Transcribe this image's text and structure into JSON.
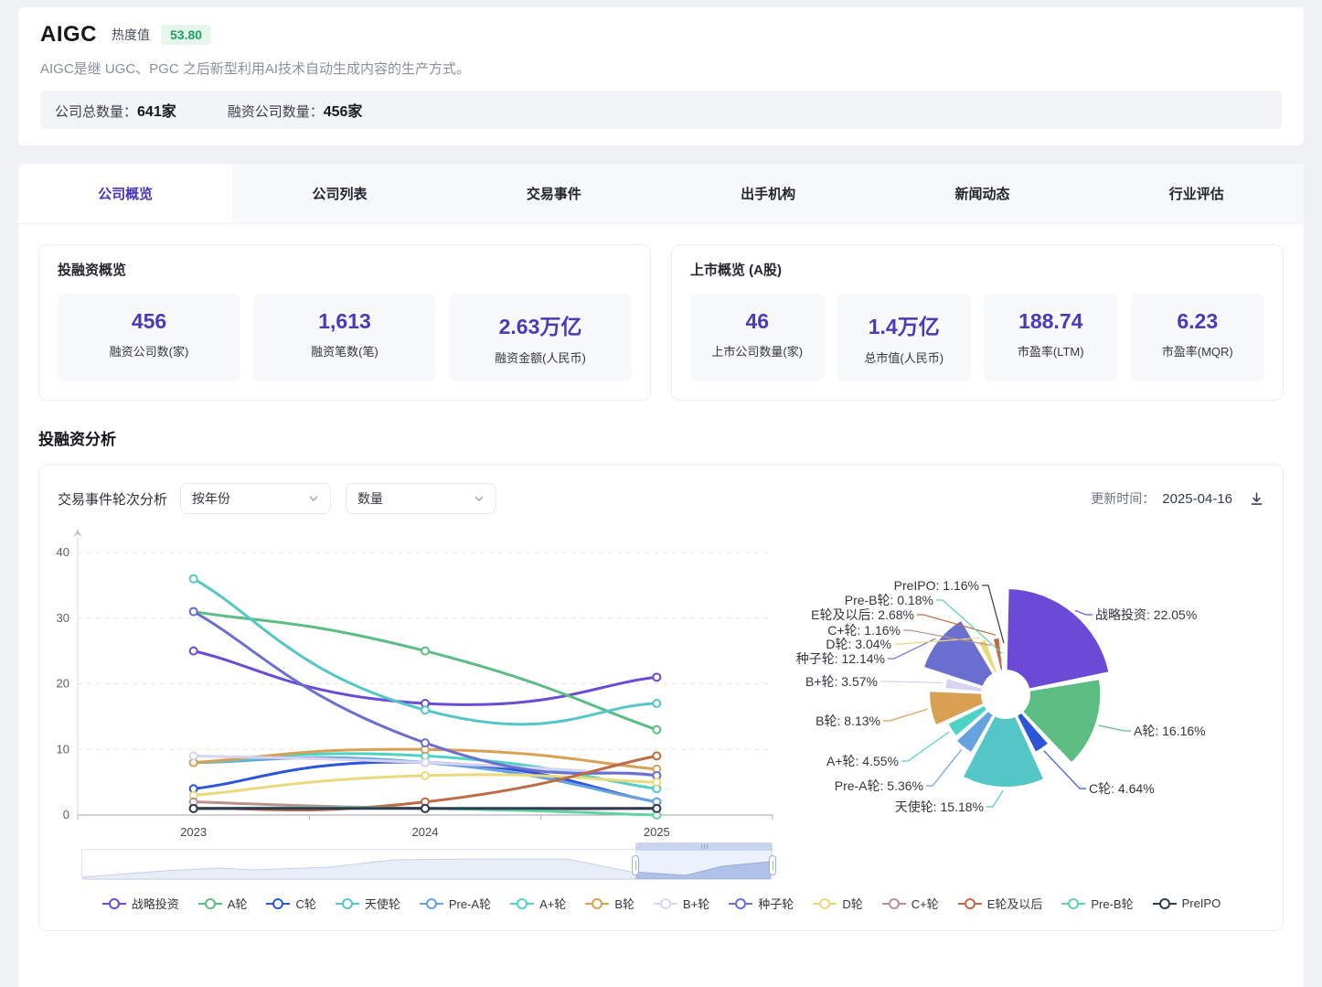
{
  "header": {
    "title": "AIGC",
    "heat_label": "热度值",
    "heat_value": "53.80",
    "description": "AIGC是继 UGC、PGC 之后新型利用AI技术自动生成内容的生产方式。",
    "stats": [
      {
        "label": "公司总数量：",
        "value": "641家"
      },
      {
        "label": "融资公司数量：",
        "value": "456家"
      }
    ]
  },
  "tabs": {
    "active_index": 0,
    "items": [
      {
        "label": "公司概览"
      },
      {
        "label": "公司列表"
      },
      {
        "label": "交易事件"
      },
      {
        "label": "出手机构"
      },
      {
        "label": "新闻动态"
      },
      {
        "label": "行业评估"
      }
    ]
  },
  "overview_funding": {
    "title": "投融资概览",
    "stats": [
      {
        "value": "456",
        "label": "融资公司数(家)"
      },
      {
        "value": "1,613",
        "label": "融资笔数(笔)"
      },
      {
        "value": "2.63万亿",
        "label": "融资金额(人民币)"
      }
    ]
  },
  "overview_listed": {
    "title": "上市概览 (A股)",
    "stats": [
      {
        "value": "46",
        "label": "上市公司数量(家)"
      },
      {
        "value": "1.4万亿",
        "label": "总市值(人民币)"
      },
      {
        "value": "188.74",
        "label": "市盈率(LTM)"
      },
      {
        "value": "6.23",
        "label": "市盈率(MQR)"
      }
    ]
  },
  "section_title": "投融资分析",
  "chart_panel": {
    "title": "交易事件轮次分析",
    "filters": [
      {
        "value": "按年份"
      },
      {
        "value": "数量"
      }
    ],
    "update_label": "更新时间：",
    "update_date": "2025-04-16",
    "download_icon": "download-icon"
  },
  "chart_data": [
    {
      "type": "line",
      "title": "交易事件轮次分析 (按年份 / 数量)",
      "x": [
        "2023",
        "2024",
        "2025"
      ],
      "ylim": [
        0,
        40
      ],
      "y_ticks": [
        0,
        10,
        20,
        30,
        40
      ],
      "grid": "horizontal-dashed",
      "legend_position": "bottom",
      "smooth": true,
      "datazoom": {
        "window_start_pct": 80,
        "window_end_pct": 100
      },
      "series": [
        {
          "name": "战略投资",
          "color": "#6b4ad6",
          "values": [
            25,
            17,
            21
          ]
        },
        {
          "name": "A轮",
          "color": "#5cbd82",
          "values": [
            31,
            25,
            13
          ]
        },
        {
          "name": "C轮",
          "color": "#2d55d8",
          "values": [
            4,
            8,
            2
          ]
        },
        {
          "name": "天使轮",
          "color": "#55c6c8",
          "values": [
            36,
            16,
            17
          ]
        },
        {
          "name": "Pre-A轮",
          "color": "#66a3de",
          "values": [
            8,
            8,
            2
          ]
        },
        {
          "name": "A+轮",
          "color": "#4dd2c3",
          "values": [
            8,
            9,
            4
          ]
        },
        {
          "name": "B轮",
          "color": "#d9a053",
          "values": [
            8,
            10,
            7
          ]
        },
        {
          "name": "B+轮",
          "color": "#d8d2f3",
          "values": [
            9,
            8,
            6
          ]
        },
        {
          "name": "种子轮",
          "color": "#6a6ecf",
          "values": [
            31,
            11,
            6
          ]
        },
        {
          "name": "D轮",
          "color": "#ead97c",
          "values": [
            3,
            6,
            5
          ]
        },
        {
          "name": "C+轮",
          "color": "#bd8f8f",
          "values": [
            2,
            1,
            1
          ]
        },
        {
          "name": "E轮及以后",
          "color": "#bf6a43",
          "values": [
            1,
            2,
            9
          ]
        },
        {
          "name": "Pre-B轮",
          "color": "#5fd3a2",
          "values": [
            1,
            1,
            0
          ]
        },
        {
          "name": "PreIPO",
          "color": "#2f3b50",
          "values": [
            1,
            1,
            1
          ]
        }
      ]
    },
    {
      "type": "pie",
      "style": "rose-donut",
      "unit": "%",
      "slices": [
        {
          "name": "战略投资",
          "value": 22.05,
          "color": "#6b4ad6"
        },
        {
          "name": "A轮",
          "value": 16.16,
          "color": "#5cbd82"
        },
        {
          "name": "C轮",
          "value": 4.64,
          "color": "#2d55d8"
        },
        {
          "name": "天使轮",
          "value": 15.18,
          "color": "#55c6c8"
        },
        {
          "name": "Pre-A轮",
          "value": 5.36,
          "color": "#66a3de"
        },
        {
          "name": "A+轮",
          "value": 4.55,
          "color": "#4dd2c3"
        },
        {
          "name": "B轮",
          "value": 8.13,
          "color": "#d9a053"
        },
        {
          "name": "B+轮",
          "value": 3.57,
          "color": "#d8d2f3"
        },
        {
          "name": "种子轮",
          "value": 12.14,
          "color": "#6a6ecf"
        },
        {
          "name": "D轮",
          "value": 3.04,
          "color": "#ead97c"
        },
        {
          "name": "C+轮",
          "value": 1.16,
          "color": "#bd8f8f"
        },
        {
          "name": "E轮及以后",
          "value": 2.68,
          "color": "#bf6a43"
        },
        {
          "name": "Pre-B轮",
          "value": 0.18,
          "color": "#5fd3a2"
        },
        {
          "name": "PreIPO",
          "value": 1.16,
          "color": "#2f3b50"
        }
      ]
    }
  ]
}
